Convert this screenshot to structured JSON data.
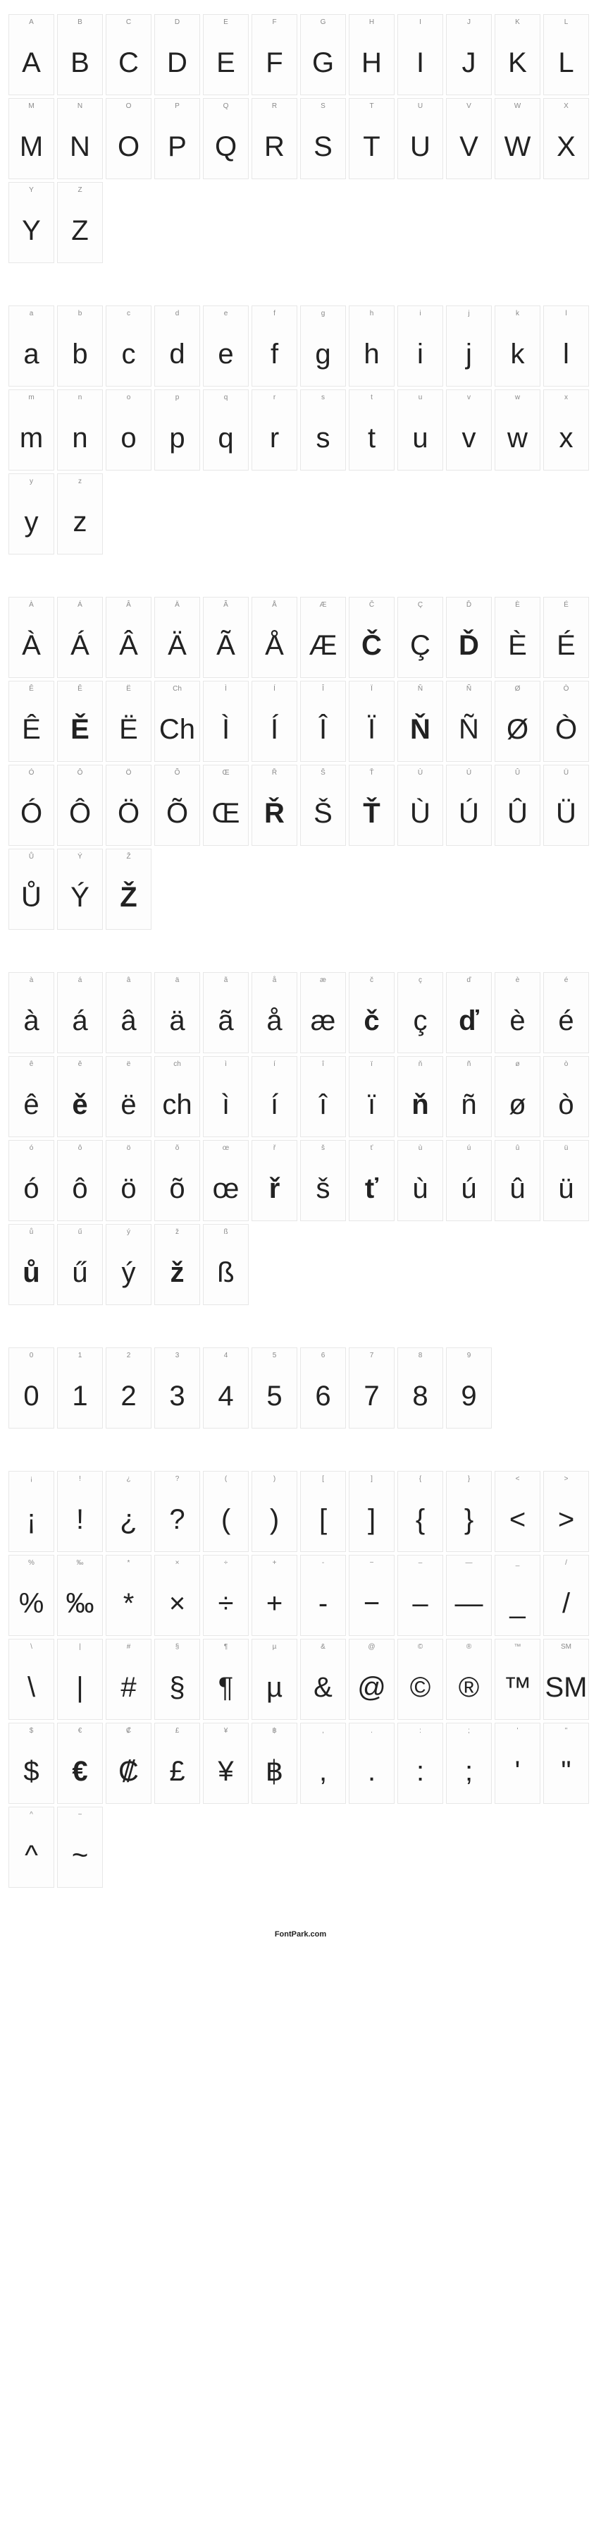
{
  "cell_style": {
    "width": 65,
    "height": 115,
    "border_color": "#e7e7e7",
    "background": "#fdfdfd",
    "label_fontsize": 10,
    "label_color": "#8a8a8a",
    "glyph_fontsize": 40,
    "glyph_color": "#222222",
    "gap": 4,
    "section_gap": 60
  },
  "sections": [
    {
      "name": "uppercase",
      "cells": [
        {
          "label": "A",
          "glyph": "A"
        },
        {
          "label": "B",
          "glyph": "B"
        },
        {
          "label": "C",
          "glyph": "C"
        },
        {
          "label": "D",
          "glyph": "D"
        },
        {
          "label": "E",
          "glyph": "E"
        },
        {
          "label": "F",
          "glyph": "F"
        },
        {
          "label": "G",
          "glyph": "G"
        },
        {
          "label": "H",
          "glyph": "H"
        },
        {
          "label": "I",
          "glyph": "I"
        },
        {
          "label": "J",
          "glyph": "J"
        },
        {
          "label": "K",
          "glyph": "K"
        },
        {
          "label": "L",
          "glyph": "L"
        },
        {
          "label": "M",
          "glyph": "M"
        },
        {
          "label": "N",
          "glyph": "N"
        },
        {
          "label": "O",
          "glyph": "O"
        },
        {
          "label": "P",
          "glyph": "P"
        },
        {
          "label": "Q",
          "glyph": "Q"
        },
        {
          "label": "R",
          "glyph": "R"
        },
        {
          "label": "S",
          "glyph": "S"
        },
        {
          "label": "T",
          "glyph": "T"
        },
        {
          "label": "U",
          "glyph": "U"
        },
        {
          "label": "V",
          "glyph": "V"
        },
        {
          "label": "W",
          "glyph": "W"
        },
        {
          "label": "X",
          "glyph": "X"
        },
        {
          "label": "Y",
          "glyph": "Y"
        },
        {
          "label": "Z",
          "glyph": "Z"
        }
      ]
    },
    {
      "name": "lowercase",
      "cells": [
        {
          "label": "a",
          "glyph": "a"
        },
        {
          "label": "b",
          "glyph": "b"
        },
        {
          "label": "c",
          "glyph": "c"
        },
        {
          "label": "d",
          "glyph": "d"
        },
        {
          "label": "e",
          "glyph": "e"
        },
        {
          "label": "f",
          "glyph": "f"
        },
        {
          "label": "g",
          "glyph": "g"
        },
        {
          "label": "h",
          "glyph": "h"
        },
        {
          "label": "i",
          "glyph": "i"
        },
        {
          "label": "j",
          "glyph": "j"
        },
        {
          "label": "k",
          "glyph": "k"
        },
        {
          "label": "l",
          "glyph": "l"
        },
        {
          "label": "m",
          "glyph": "m"
        },
        {
          "label": "n",
          "glyph": "n"
        },
        {
          "label": "o",
          "glyph": "o"
        },
        {
          "label": "p",
          "glyph": "p"
        },
        {
          "label": "q",
          "glyph": "q"
        },
        {
          "label": "r",
          "glyph": "r"
        },
        {
          "label": "s",
          "glyph": "s"
        },
        {
          "label": "t",
          "glyph": "t"
        },
        {
          "label": "u",
          "glyph": "u"
        },
        {
          "label": "v",
          "glyph": "v"
        },
        {
          "label": "w",
          "glyph": "w"
        },
        {
          "label": "x",
          "glyph": "x"
        },
        {
          "label": "y",
          "glyph": "y"
        },
        {
          "label": "z",
          "glyph": "z"
        }
      ]
    },
    {
      "name": "accented-upper",
      "cells": [
        {
          "label": "À",
          "glyph": "À"
        },
        {
          "label": "Á",
          "glyph": "Á"
        },
        {
          "label": "Â",
          "glyph": "Â"
        },
        {
          "label": "Ä",
          "glyph": "Ä"
        },
        {
          "label": "Ã",
          "glyph": "Ã"
        },
        {
          "label": "Å",
          "glyph": "Å"
        },
        {
          "label": "Æ",
          "glyph": "Æ"
        },
        {
          "label": "Č",
          "glyph": "Č",
          "bold": true
        },
        {
          "label": "Ç",
          "glyph": "Ç"
        },
        {
          "label": "Ď",
          "glyph": "Ď",
          "bold": true
        },
        {
          "label": "È",
          "glyph": "È"
        },
        {
          "label": "É",
          "glyph": "É"
        },
        {
          "label": "Ê",
          "glyph": "Ê"
        },
        {
          "label": "Ě",
          "glyph": "Ě",
          "bold": true
        },
        {
          "label": "Ë",
          "glyph": "Ë"
        },
        {
          "label": "Ch",
          "glyph": "Ch"
        },
        {
          "label": "Ì",
          "glyph": "Ì"
        },
        {
          "label": "Í",
          "glyph": "Í"
        },
        {
          "label": "Î",
          "glyph": "Î"
        },
        {
          "label": "Ï",
          "glyph": "Ï"
        },
        {
          "label": "Ň",
          "glyph": "Ň",
          "bold": true
        },
        {
          "label": "Ñ",
          "glyph": "Ñ"
        },
        {
          "label": "Ø",
          "glyph": "Ø"
        },
        {
          "label": "Ò",
          "glyph": "Ò"
        },
        {
          "label": "Ó",
          "glyph": "Ó"
        },
        {
          "label": "Ô",
          "glyph": "Ô"
        },
        {
          "label": "Ö",
          "glyph": "Ö"
        },
        {
          "label": "Õ",
          "glyph": "Õ"
        },
        {
          "label": "Œ",
          "glyph": "Œ"
        },
        {
          "label": "Ř",
          "glyph": "Ř",
          "bold": true
        },
        {
          "label": "Š",
          "glyph": "Š"
        },
        {
          "label": "Ť",
          "glyph": "Ť",
          "bold": true
        },
        {
          "label": "Ù",
          "glyph": "Ù"
        },
        {
          "label": "Ú",
          "glyph": "Ú"
        },
        {
          "label": "Û",
          "glyph": "Û"
        },
        {
          "label": "Ü",
          "glyph": "Ü"
        },
        {
          "label": "Ů",
          "glyph": "Ů"
        },
        {
          "label": "Ý",
          "glyph": "Ý"
        },
        {
          "label": "Ž",
          "glyph": "Ž",
          "bold": true
        }
      ]
    },
    {
      "name": "accented-lower",
      "cells": [
        {
          "label": "à",
          "glyph": "à"
        },
        {
          "label": "á",
          "glyph": "á"
        },
        {
          "label": "â",
          "glyph": "â"
        },
        {
          "label": "ä",
          "glyph": "ä"
        },
        {
          "label": "ã",
          "glyph": "ã"
        },
        {
          "label": "å",
          "glyph": "å"
        },
        {
          "label": "æ",
          "glyph": "æ"
        },
        {
          "label": "č",
          "glyph": "č",
          "bold": true
        },
        {
          "label": "ç",
          "glyph": "ç"
        },
        {
          "label": "ď",
          "glyph": "ď",
          "bold": true
        },
        {
          "label": "è",
          "glyph": "è"
        },
        {
          "label": "é",
          "glyph": "é"
        },
        {
          "label": "ê",
          "glyph": "ê"
        },
        {
          "label": "ě",
          "glyph": "ě",
          "bold": true
        },
        {
          "label": "ë",
          "glyph": "ë"
        },
        {
          "label": "ch",
          "glyph": "ch"
        },
        {
          "label": "ì",
          "glyph": "ì"
        },
        {
          "label": "í",
          "glyph": "í"
        },
        {
          "label": "î",
          "glyph": "î"
        },
        {
          "label": "ï",
          "glyph": "ï"
        },
        {
          "label": "ň",
          "glyph": "ň",
          "bold": true
        },
        {
          "label": "ñ",
          "glyph": "ñ"
        },
        {
          "label": "ø",
          "glyph": "ø"
        },
        {
          "label": "ò",
          "glyph": "ò"
        },
        {
          "label": "ó",
          "glyph": "ó"
        },
        {
          "label": "ô",
          "glyph": "ô"
        },
        {
          "label": "ö",
          "glyph": "ö"
        },
        {
          "label": "õ",
          "glyph": "õ"
        },
        {
          "label": "œ",
          "glyph": "œ"
        },
        {
          "label": "ř",
          "glyph": "ř",
          "bold": true
        },
        {
          "label": "š",
          "glyph": "š"
        },
        {
          "label": "ť",
          "glyph": "ť",
          "bold": true
        },
        {
          "label": "ù",
          "glyph": "ù"
        },
        {
          "label": "ú",
          "glyph": "ú"
        },
        {
          "label": "û",
          "glyph": "û"
        },
        {
          "label": "ü",
          "glyph": "ü"
        },
        {
          "label": "ů",
          "glyph": "ů",
          "bold": true
        },
        {
          "label": "ű",
          "glyph": "ű"
        },
        {
          "label": "ý",
          "glyph": "ý"
        },
        {
          "label": "ž",
          "glyph": "ž",
          "bold": true
        },
        {
          "label": "ß",
          "glyph": "ß"
        }
      ]
    },
    {
      "name": "digits",
      "cells": [
        {
          "label": "0",
          "glyph": "0"
        },
        {
          "label": "1",
          "glyph": "1"
        },
        {
          "label": "2",
          "glyph": "2"
        },
        {
          "label": "3",
          "glyph": "3"
        },
        {
          "label": "4",
          "glyph": "4"
        },
        {
          "label": "5",
          "glyph": "5"
        },
        {
          "label": "6",
          "glyph": "6"
        },
        {
          "label": "7",
          "glyph": "7"
        },
        {
          "label": "8",
          "glyph": "8"
        },
        {
          "label": "9",
          "glyph": "9"
        }
      ]
    },
    {
      "name": "symbols",
      "cells": [
        {
          "label": "¡",
          "glyph": "¡"
        },
        {
          "label": "!",
          "glyph": "!"
        },
        {
          "label": "¿",
          "glyph": "¿"
        },
        {
          "label": "?",
          "glyph": "?"
        },
        {
          "label": "(",
          "glyph": "("
        },
        {
          "label": ")",
          "glyph": ")"
        },
        {
          "label": "[",
          "glyph": "["
        },
        {
          "label": "]",
          "glyph": "]"
        },
        {
          "label": "{",
          "glyph": "{"
        },
        {
          "label": "}",
          "glyph": "}"
        },
        {
          "label": "<",
          "glyph": "<"
        },
        {
          "label": ">",
          "glyph": ">"
        },
        {
          "label": "%",
          "glyph": "%"
        },
        {
          "label": "‰",
          "glyph": "‰"
        },
        {
          "label": "*",
          "glyph": "*"
        },
        {
          "label": "×",
          "glyph": "×"
        },
        {
          "label": "÷",
          "glyph": "÷"
        },
        {
          "label": "+",
          "glyph": "+"
        },
        {
          "label": "-",
          "glyph": "-"
        },
        {
          "label": "−",
          "glyph": "−"
        },
        {
          "label": "–",
          "glyph": "–"
        },
        {
          "label": "—",
          "glyph": "—"
        },
        {
          "label": "_",
          "glyph": "_"
        },
        {
          "label": "/",
          "glyph": "/"
        },
        {
          "label": "\\",
          "glyph": "\\"
        },
        {
          "label": "|",
          "glyph": "|"
        },
        {
          "label": "#",
          "glyph": "#"
        },
        {
          "label": "§",
          "glyph": "§"
        },
        {
          "label": "¶",
          "glyph": "¶"
        },
        {
          "label": "µ",
          "glyph": "µ"
        },
        {
          "label": "&",
          "glyph": "&"
        },
        {
          "label": "@",
          "glyph": "@"
        },
        {
          "label": "©",
          "glyph": "©"
        },
        {
          "label": "®",
          "glyph": "®"
        },
        {
          "label": "™",
          "glyph": "™"
        },
        {
          "label": "SM",
          "glyph": "SM"
        },
        {
          "label": "$",
          "glyph": "$"
        },
        {
          "label": "€",
          "glyph": "€",
          "bold": true
        },
        {
          "label": "₡",
          "glyph": "₡"
        },
        {
          "label": "£",
          "glyph": "£"
        },
        {
          "label": "¥",
          "glyph": "¥"
        },
        {
          "label": "฿",
          "glyph": "฿"
        },
        {
          "label": ",",
          "glyph": ","
        },
        {
          "label": ".",
          "glyph": "."
        },
        {
          "label": ":",
          "glyph": ":"
        },
        {
          "label": ";",
          "glyph": ";"
        },
        {
          "label": "'",
          "glyph": "'"
        },
        {
          "label": "\"",
          "glyph": "\""
        },
        {
          "label": "^",
          "glyph": "^"
        },
        {
          "label": "~",
          "glyph": "~"
        }
      ]
    }
  ],
  "footer": "FontPark.com"
}
